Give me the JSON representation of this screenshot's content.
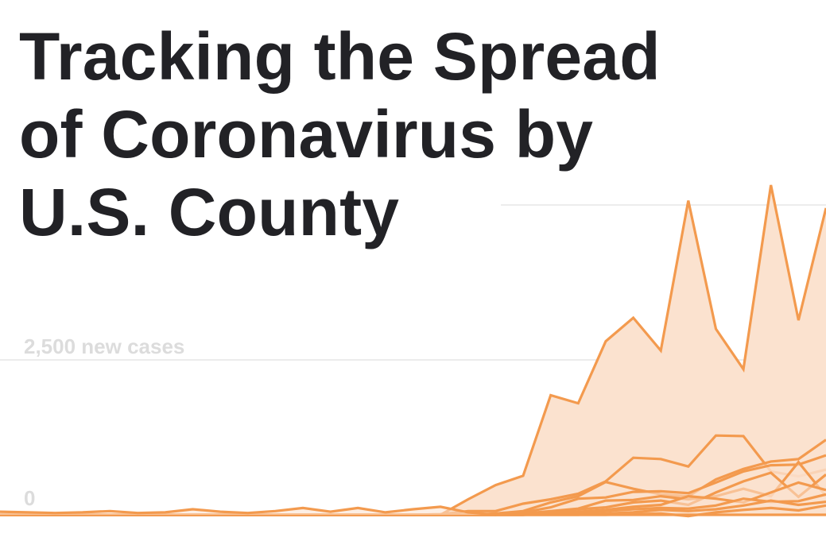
{
  "title_lines": [
    "Tracking the Spread",
    "of Coronavirus by",
    "U.S. County"
  ],
  "chart_data": {
    "type": "area",
    "title": "Tracking the Spread of Coronavirus by U.S. County",
    "xlabel": "",
    "ylabel": "",
    "y_ticks": [
      {
        "value": 0,
        "label": "0"
      },
      {
        "value": 2500,
        "label": "2,500 new cases"
      },
      {
        "value": 5000,
        "label": ""
      }
    ],
    "ylim": [
      0,
      5500
    ],
    "x": [
      0,
      1,
      2,
      3,
      4,
      5,
      6,
      7,
      8,
      9,
      10,
      11,
      12,
      13,
      14,
      15,
      16,
      17,
      18,
      19,
      20,
      21,
      22,
      23,
      24,
      25,
      26,
      27,
      28,
      29,
      30
    ],
    "grid": true,
    "series_color": "#f39a4e",
    "fill_color": "#fbe2cf",
    "series": [
      {
        "values": [
          0,
          0,
          0,
          0,
          0,
          0,
          0,
          0,
          0,
          0,
          0,
          0,
          0,
          0,
          0,
          0,
          0,
          250,
          480,
          630,
          1930,
          1800,
          2800,
          3180,
          2650,
          5070,
          3000,
          2350,
          5320,
          3140,
          4950
        ]
      },
      {
        "values": [
          0,
          0,
          0,
          0,
          0,
          0,
          0,
          0,
          0,
          0,
          0,
          0,
          0,
          0,
          0,
          0,
          10,
          60,
          60,
          180,
          250,
          340,
          540,
          920,
          900,
          780,
          1280,
          1270,
          700,
          620,
          730
        ]
      },
      {
        "values": [
          0,
          0,
          0,
          0,
          0,
          0,
          0,
          0,
          0,
          0,
          0,
          0,
          0,
          0,
          0,
          0,
          0,
          0,
          20,
          60,
          200,
          300,
          530,
          420,
          330,
          300,
          570,
          740,
          860,
          900,
          1210
        ]
      },
      {
        "values": [
          0,
          0,
          0,
          0,
          0,
          0,
          0,
          0,
          0,
          0,
          0,
          0,
          0,
          0,
          0,
          0,
          0,
          0,
          0,
          40,
          120,
          260,
          280,
          370,
          380,
          350,
          520,
          700,
          800,
          810,
          960
        ]
      },
      {
        "values": [
          0,
          0,
          0,
          0,
          0,
          0,
          0,
          0,
          0,
          0,
          0,
          0,
          0,
          0,
          0,
          0,
          0,
          0,
          0,
          20,
          60,
          100,
          230,
          240,
          300,
          250,
          300,
          420,
          300,
          850,
          300
        ]
      },
      {
        "values": [
          0,
          0,
          0,
          0,
          0,
          0,
          0,
          0,
          0,
          0,
          0,
          0,
          0,
          0,
          0,
          0,
          0,
          0,
          0,
          0,
          40,
          90,
          120,
          200,
          230,
          160,
          360,
          540,
          680,
          290,
          650
        ]
      },
      {
        "values": [
          0,
          0,
          0,
          0,
          0,
          0,
          0,
          0,
          0,
          0,
          0,
          0,
          0,
          0,
          0,
          0,
          0,
          0,
          0,
          0,
          20,
          50,
          80,
          130,
          160,
          300,
          260,
          200,
          360,
          520,
          400
        ]
      },
      {
        "values": [
          0,
          0,
          0,
          0,
          0,
          0,
          0,
          0,
          0,
          0,
          0,
          0,
          0,
          0,
          0,
          0,
          0,
          0,
          0,
          0,
          10,
          30,
          60,
          90,
          110,
          100,
          150,
          260,
          210,
          220,
          330
        ]
      },
      {
        "values": [
          0,
          0,
          0,
          0,
          0,
          0,
          0,
          0,
          0,
          0,
          0,
          0,
          0,
          0,
          0,
          0,
          0,
          0,
          0,
          0,
          0,
          0,
          20,
          40,
          80,
          60,
          90,
          150,
          230,
          160,
          210
        ]
      },
      {
        "values": [
          0,
          0,
          0,
          0,
          0,
          0,
          0,
          0,
          0,
          0,
          0,
          0,
          0,
          0,
          0,
          0,
          0,
          0,
          0,
          0,
          0,
          0,
          0,
          10,
          20,
          -20,
          40,
          80,
          110,
          70,
          150
        ]
      },
      {
        "values": [
          50,
          40,
          30,
          40,
          60,
          30,
          40,
          90,
          50,
          30,
          60,
          110,
          50,
          110,
          40,
          90,
          130,
          40,
          0,
          0,
          0,
          0,
          0,
          0,
          0,
          0,
          0,
          0,
          0,
          0,
          0
        ]
      }
    ]
  }
}
